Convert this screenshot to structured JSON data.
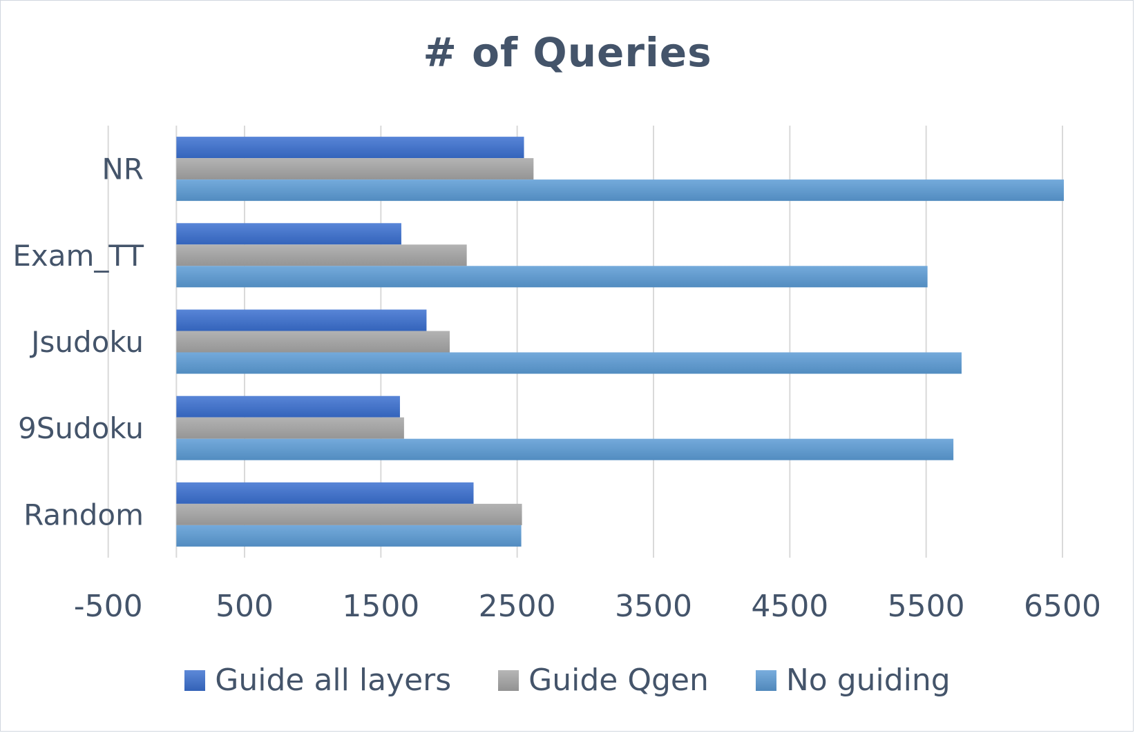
{
  "chart_data": {
    "type": "bar",
    "orientation": "horizontal",
    "title": "# of Queries",
    "xlabel": "",
    "ylabel": "",
    "categories": [
      "NR",
      "Exam_TT",
      "Jsudoku",
      "9Sudoku",
      "Random"
    ],
    "series": [
      {
        "name": "Guide all layers",
        "color": "#3a6fd0",
        "values": [
          2550,
          1650,
          1835,
          1640,
          2180
        ]
      },
      {
        "name": "Guide Qgen",
        "color": "#a6a6a6",
        "values": [
          2620,
          2130,
          2005,
          1670,
          2535
        ]
      },
      {
        "name": "No guiding",
        "color": "#5b9bd5",
        "values": [
          6510,
          5510,
          5760,
          5700,
          2530
        ]
      }
    ],
    "xlim": [
      -1000,
      6500
    ],
    "xticks": [
      -500,
      500,
      1500,
      2500,
      3500,
      4500,
      5500,
      6500
    ],
    "xtick_labels": [
      "-500",
      "500",
      "1500",
      "2500",
      "3500",
      "4500",
      "5500",
      "6500"
    ],
    "grid": true,
    "legend_position": "bottom"
  }
}
